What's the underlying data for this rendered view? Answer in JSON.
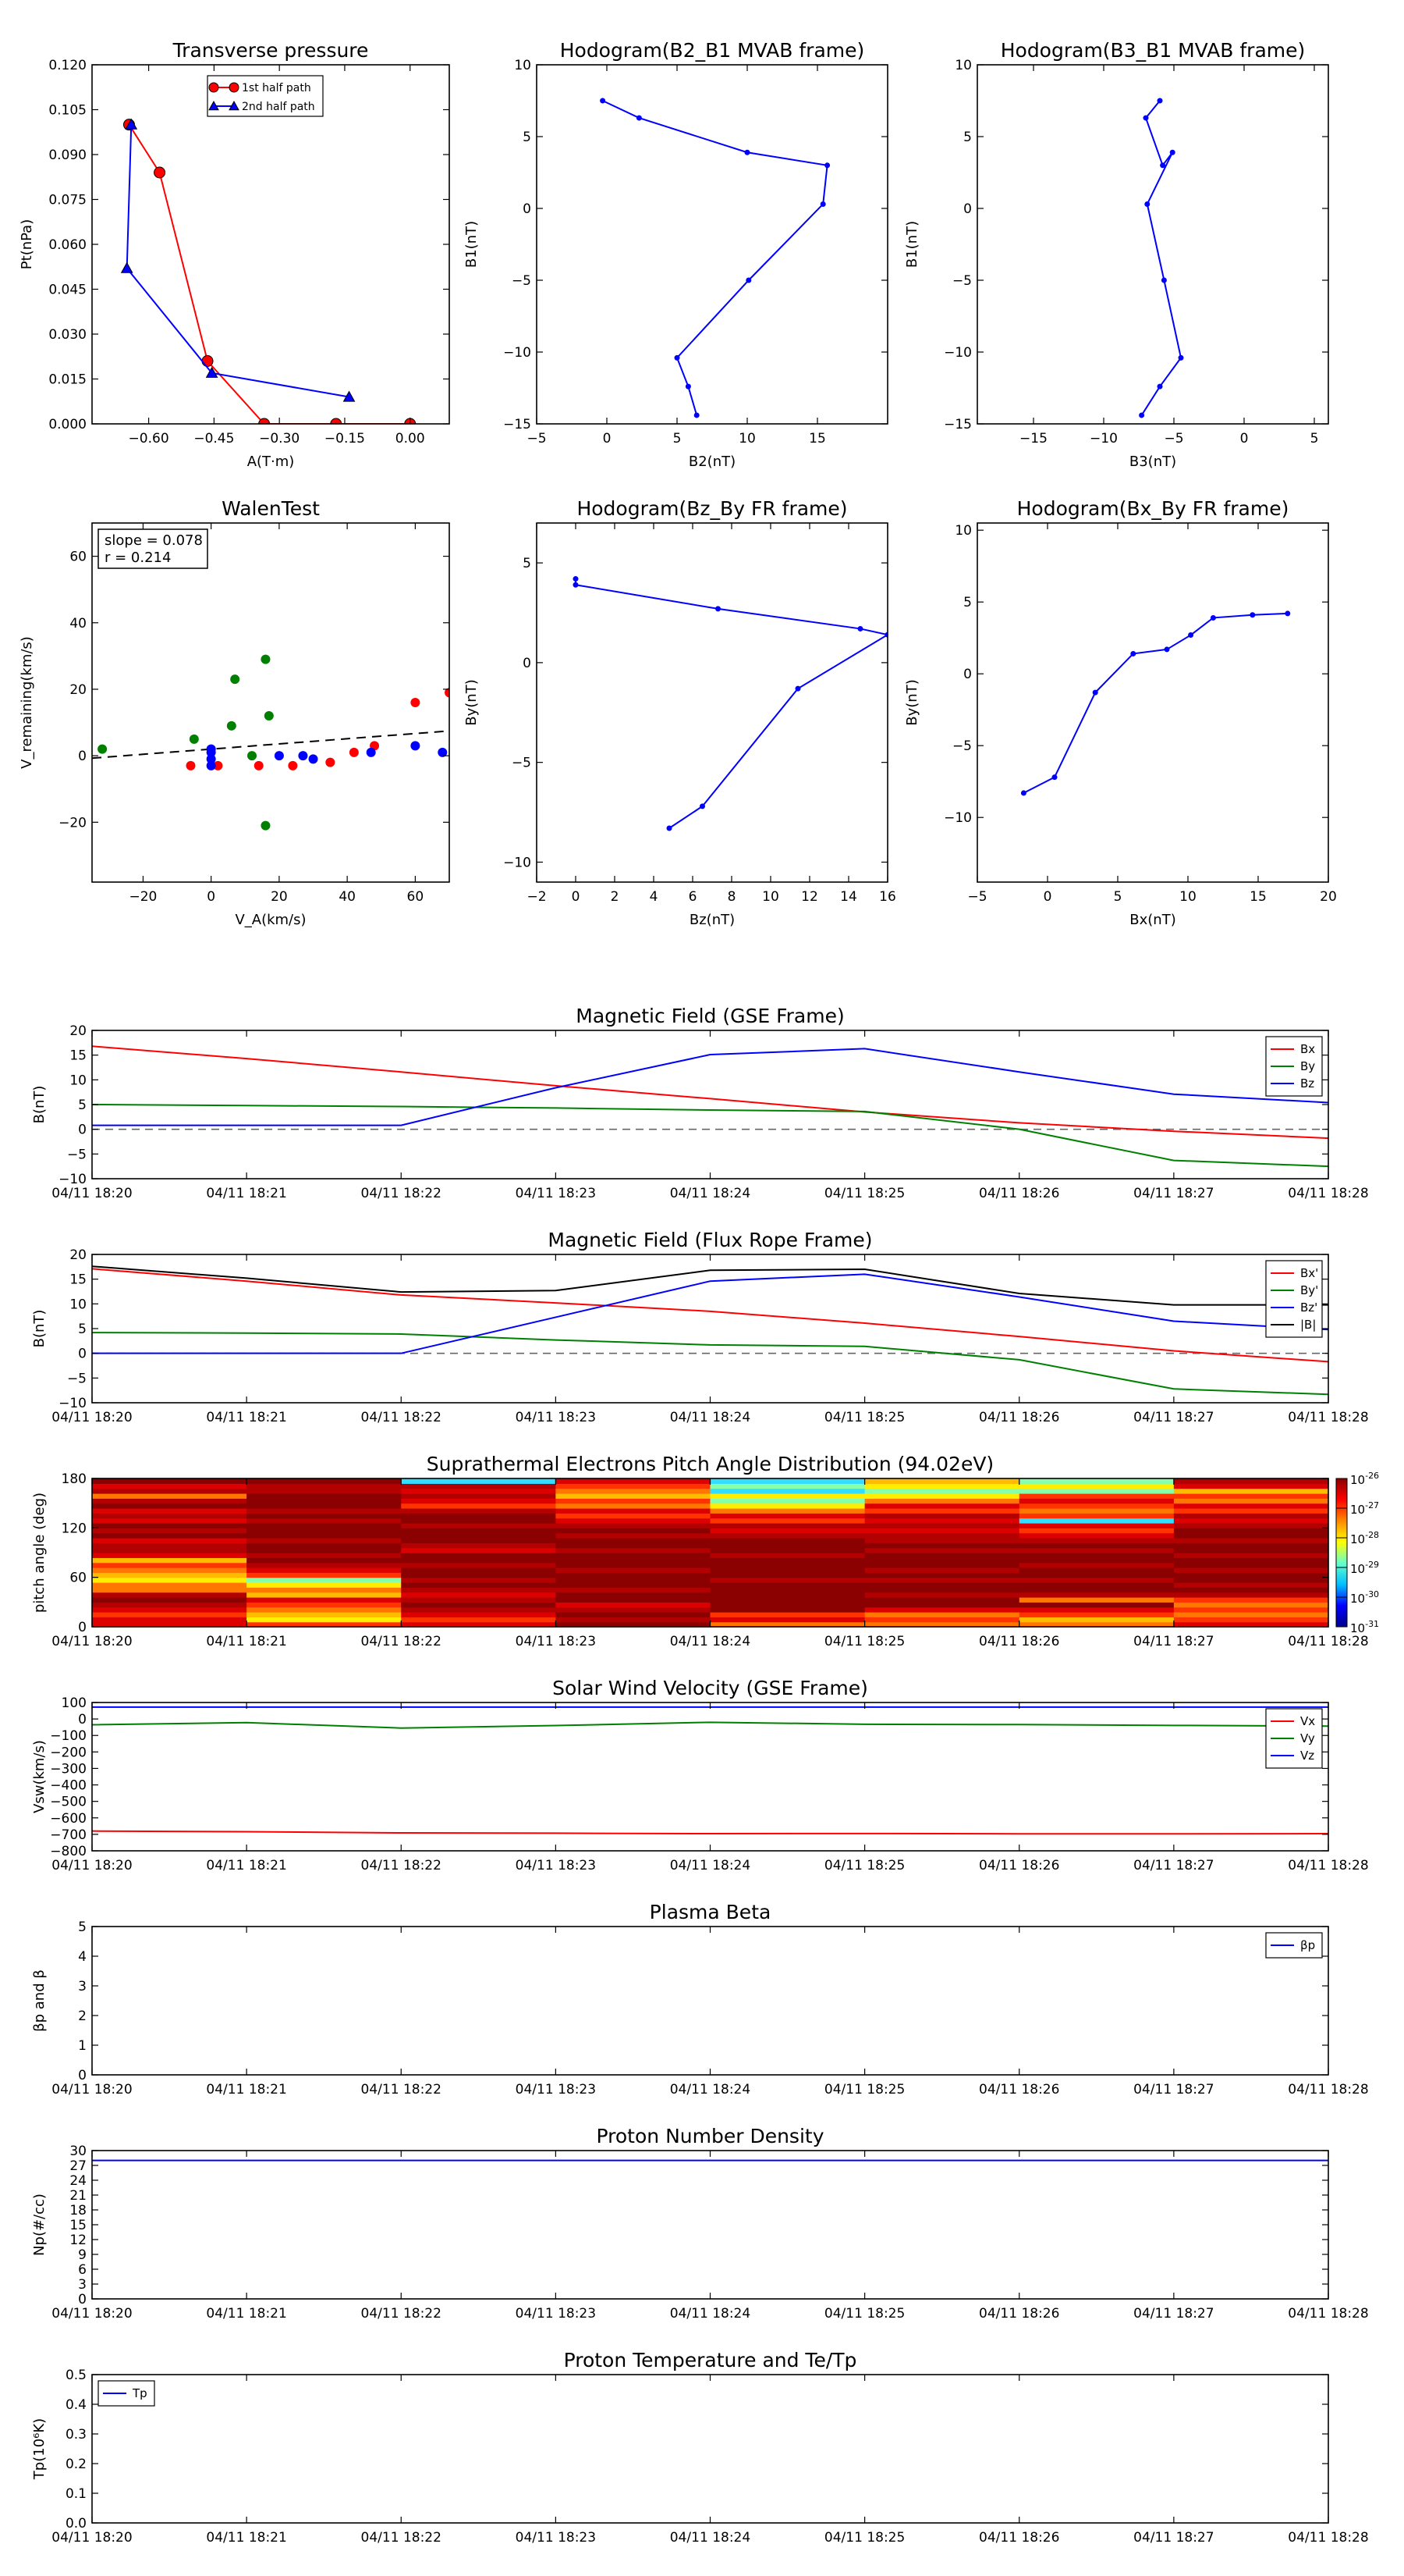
{
  "time_ticks": [
    "04/11 18:20",
    "04/11 18:21",
    "04/11 18:22",
    "04/11 18:23",
    "04/11 18:24",
    "04/11 18:25",
    "04/11 18:26",
    "04/11 18:27",
    "04/11 18:28"
  ],
  "chart_data": [
    {
      "id": "tp",
      "type": "line",
      "title": "Transverse pressure",
      "xlabel": "A(T·m)",
      "ylabel": "Pt(nPa)",
      "xlim": [
        -0.73,
        0.09
      ],
      "ylim": [
        0,
        0.12
      ],
      "xticks": [
        -0.6,
        -0.45,
        -0.3,
        -0.15,
        0.0
      ],
      "xtick_labels": [
        "−0.60",
        "−0.45",
        "−0.30",
        "−0.15",
        "0.00"
      ],
      "yticks": [
        0,
        0.015,
        0.03,
        0.045,
        0.06,
        0.075,
        0.09,
        0.105,
        0.12
      ],
      "ytick_labels": [
        "0.000",
        "0.015",
        "0.030",
        "0.045",
        "0.060",
        "0.075",
        "0.090",
        "0.105",
        "0.120"
      ],
      "legend": "top-center",
      "series": [
        {
          "name": "1st half path",
          "color": "#ff0000",
          "marker": "circle",
          "x": [
            -0.645,
            -0.575,
            -0.465,
            -0.335,
            -0.17,
            0.0
          ],
          "y": [
            0.1,
            0.084,
            0.021,
            0.0,
            0.0,
            0.0
          ]
        },
        {
          "name": "2nd half path",
          "color": "#0000ff",
          "marker": "triangle",
          "x": [
            -0.64,
            -0.65,
            -0.455,
            -0.14
          ],
          "y": [
            0.1,
            0.052,
            0.017,
            0.009
          ]
        }
      ]
    },
    {
      "id": "h1",
      "type": "line",
      "title": "Hodogram(B2_B1 MVAB frame)",
      "xlabel": "B2(nT)",
      "ylabel": "B1(nT)",
      "xlim": [
        -5,
        20
      ],
      "ylim": [
        -15,
        10
      ],
      "xticks": [
        -5,
        0,
        5,
        10,
        15
      ],
      "xtick_labels": [
        "−5",
        "0",
        "5",
        "10",
        "15"
      ],
      "yticks": [
        -15,
        -10,
        -5,
        0,
        5,
        10
      ],
      "ytick_labels": [
        "−15",
        "−10",
        "−5",
        "0",
        "5",
        "10"
      ],
      "series": [
        {
          "color": "#0000ff",
          "x": [
            -0.3,
            2.3,
            10,
            15.7,
            15.4,
            10.1,
            5,
            5.8,
            6.4
          ],
          "y": [
            7.5,
            6.3,
            3.9,
            3,
            0.3,
            -5,
            -10.4,
            -12.4,
            -14.4
          ]
        }
      ]
    },
    {
      "id": "h2",
      "type": "line",
      "title": "Hodogram(B3_B1 MVAB frame)",
      "xlabel": "B3(nT)",
      "ylabel": "B1(nT)",
      "xlim": [
        -19,
        6
      ],
      "ylim": [
        -15,
        10
      ],
      "xticks": [
        -15,
        -10,
        -5,
        0,
        5
      ],
      "xtick_labels": [
        "−15",
        "−10",
        "−5",
        "0",
        "5"
      ],
      "yticks": [
        -15,
        -10,
        -5,
        0,
        5,
        10
      ],
      "ytick_labels": [
        "−15",
        "−10",
        "−5",
        "0",
        "5",
        "10"
      ],
      "series": [
        {
          "color": "#0000ff",
          "x": [
            -6,
            -7,
            -5.8,
            -5.1,
            -6.9,
            -5.7,
            -4.5,
            -6,
            -7.3
          ],
          "y": [
            7.5,
            6.3,
            3,
            3.9,
            0.3,
            -5,
            -10.4,
            -12.4,
            -14.4
          ]
        }
      ]
    },
    {
      "id": "walen",
      "type": "scatter",
      "title": "WalenTest",
      "xlabel": "V_A(km/s)",
      "ylabel": "V_remaining(km/s)",
      "xlim": [
        -35,
        70
      ],
      "ylim": [
        -38,
        70
      ],
      "xticks": [
        -20,
        0,
        20,
        40,
        60
      ],
      "xtick_labels": [
        "−20",
        "0",
        "20",
        "40",
        "60"
      ],
      "yticks": [
        -20,
        0,
        20,
        40,
        60
      ],
      "ytick_labels": [
        "−20",
        "0",
        "20",
        "40",
        "60"
      ],
      "annotation": [
        "slope = 0.078",
        "r = 0.214"
      ],
      "fit_line": {
        "slope": 0.078,
        "intercept": 2
      },
      "series": [
        {
          "color": "#ff0000",
          "x": [
            -6,
            2,
            14,
            24,
            35,
            42,
            48,
            60,
            70
          ],
          "y": [
            -3,
            -3,
            -3,
            -3,
            -2,
            1,
            3,
            16,
            19
          ]
        },
        {
          "color": "#008000",
          "x": [
            -32,
            -5,
            6,
            7,
            12,
            16,
            17,
            16
          ],
          "y": [
            2,
            5,
            9,
            23,
            0,
            29,
            12,
            -21
          ]
        },
        {
          "color": "#0000ff",
          "x": [
            0,
            0,
            0,
            0,
            20,
            27,
            30,
            47,
            60,
            68
          ],
          "y": [
            -3,
            -1,
            1,
            2,
            0,
            0,
            -1,
            1,
            3,
            1
          ]
        }
      ]
    },
    {
      "id": "h3",
      "type": "line",
      "title": "Hodogram(Bz_By FR frame)",
      "xlabel": "Bz(nT)",
      "ylabel": "By(nT)",
      "xlim": [
        -2,
        16
      ],
      "ylim": [
        -11,
        7
      ],
      "xticks": [
        -2,
        0,
        2,
        4,
        6,
        8,
        10,
        12,
        14,
        16
      ],
      "xtick_labels": [
        "−2",
        "0",
        "2",
        "4",
        "6",
        "8",
        "10",
        "12",
        "14",
        "16"
      ],
      "yticks": [
        -10,
        -5,
        0,
        5
      ],
      "ytick_labels": [
        "−10",
        "−5",
        "0",
        "5"
      ],
      "series": [
        {
          "color": "#0000ff",
          "x": [
            0,
            0,
            7.3,
            14.6,
            16,
            11.4,
            6.5,
            4.8
          ],
          "y": [
            4.2,
            3.9,
            2.7,
            1.7,
            1.4,
            -1.3,
            -7.2,
            -8.3
          ]
        }
      ]
    },
    {
      "id": "h4",
      "type": "line",
      "title": "Hodogram(Bx_By FR frame)",
      "xlabel": "Bx(nT)",
      "ylabel": "By(nT)",
      "xlim": [
        -5,
        20
      ],
      "ylim": [
        -14.5,
        10.5
      ],
      "xticks": [
        -5,
        0,
        5,
        10,
        15,
        20
      ],
      "xtick_labels": [
        "−5",
        "0",
        "5",
        "10",
        "15",
        "20"
      ],
      "yticks": [
        -10,
        -5,
        0,
        5,
        10
      ],
      "ytick_labels": [
        "−10",
        "−5",
        "0",
        "5",
        "10"
      ],
      "series": [
        {
          "color": "#0000ff",
          "x": [
            -1.7,
            0.5,
            3.4,
            6.1,
            8.5,
            10.2,
            11.8,
            14.6,
            17.1
          ],
          "y": [
            -8.3,
            -7.2,
            -1.3,
            1.4,
            1.7,
            2.7,
            3.9,
            4.1,
            4.2
          ]
        }
      ]
    },
    {
      "id": "bgse",
      "type": "line",
      "title": "Magnetic Field (GSE Frame)",
      "ylabel": "B(nT)",
      "ylim": [
        -10,
        20
      ],
      "yticks": [
        -10,
        -5,
        0,
        5,
        10,
        15,
        20
      ],
      "ytick_labels": [
        "−10",
        "−5",
        "0",
        "5",
        "10",
        "15",
        "20"
      ],
      "zero_line": true,
      "legend": "top-right",
      "x": [
        0,
        1,
        2,
        3,
        4,
        5,
        6,
        7,
        8
      ],
      "series": [
        {
          "name": "Bx",
          "color": "#ff0000",
          "values": [
            16.8,
            14.3,
            11.6,
            8.8,
            6.2,
            3.5,
            1.3,
            -0.4,
            -1.8
          ]
        },
        {
          "name": "By",
          "color": "#008000",
          "values": [
            5,
            4.8,
            4.6,
            4.3,
            3.9,
            3.6,
            0,
            -6.3,
            -7.5
          ]
        },
        {
          "name": "Bz",
          "color": "#0000ff",
          "values": [
            0.8,
            0.8,
            0.8,
            8.4,
            15.1,
            16.3,
            11.6,
            7.1,
            5.4
          ]
        }
      ]
    },
    {
      "id": "bfr",
      "type": "line",
      "title": "Magnetic Field (Flux Rope Frame)",
      "ylabel": "B(nT)",
      "ylim": [
        -10,
        20
      ],
      "yticks": [
        -10,
        -5,
        0,
        5,
        10,
        15,
        20
      ],
      "ytick_labels": [
        "−10",
        "−5",
        "0",
        "5",
        "10",
        "15",
        "20"
      ],
      "zero_line": true,
      "legend": "top-right",
      "x": [
        0,
        1,
        2,
        3,
        4,
        5,
        6,
        7,
        8
      ],
      "series": [
        {
          "name": "Bx'",
          "color": "#ff0000",
          "values": [
            17.1,
            14.6,
            11.8,
            10.2,
            8.5,
            6.1,
            3.4,
            0.5,
            -1.7
          ]
        },
        {
          "name": "By'",
          "color": "#008000",
          "values": [
            4.2,
            4.1,
            3.9,
            2.7,
            1.7,
            1.4,
            -1.3,
            -7.2,
            -8.3
          ]
        },
        {
          "name": "Bz'",
          "color": "#0000ff",
          "values": [
            0,
            0,
            0,
            7.3,
            14.6,
            16,
            11.4,
            6.5,
            4.8
          ]
        },
        {
          "name": "|B|",
          "color": "#000000",
          "values": [
            17.6,
            15.2,
            12.4,
            12.7,
            16.8,
            17,
            12.1,
            9.8,
            9.8
          ]
        }
      ]
    },
    {
      "id": "pad",
      "type": "heatmap",
      "title": "Suprathermal Electrons Pitch Angle Distribution (94.02eV)",
      "ylabel": "pitch angle (deg)",
      "ylim": [
        0,
        180
      ],
      "yticks": [
        0,
        60,
        120,
        180
      ],
      "ytick_labels": [
        "0",
        "60",
        "120",
        "180"
      ],
      "colorbar_ticks": [
        "10-26",
        "10-27",
        "10-28",
        "10-29",
        "10-30",
        "10-31"
      ],
      "rows": 30,
      "columns": [
        {
          "b": [
            3,
            3,
            4,
            3,
            2,
            1,
            2,
            5,
            5,
            7,
            6,
            5,
            4,
            6,
            3,
            2,
            2,
            3,
            1,
            2,
            1,
            3,
            2,
            3,
            1,
            2,
            5,
            2,
            3,
            1
          ]
        },
        {
          "b": [
            4,
            7,
            6,
            5,
            4,
            3,
            6,
            5,
            7,
            8,
            4,
            3,
            2,
            1,
            2,
            1,
            1,
            2,
            1,
            1,
            1,
            2,
            1,
            2,
            1,
            1,
            1,
            2,
            2,
            1
          ]
        },
        {
          "b": [
            3,
            4,
            3,
            2,
            1,
            2,
            3,
            2,
            1,
            2,
            1,
            1,
            2,
            1,
            1,
            3,
            2,
            1,
            1,
            1,
            2,
            1,
            1,
            2,
            4,
            3,
            2,
            3,
            2,
            9
          ]
        },
        {
          "b": [
            1,
            2,
            1,
            2,
            3,
            1,
            1,
            2,
            1,
            1,
            1,
            2,
            1,
            1,
            1,
            2,
            1,
            1,
            2,
            1,
            2,
            3,
            4,
            3,
            5,
            4,
            6,
            5,
            4,
            3
          ]
        },
        {
          "b": [
            5,
            3,
            4,
            1,
            1,
            1,
            1,
            1,
            1,
            2,
            1,
            1,
            1,
            1,
            2,
            1,
            1,
            1,
            2,
            3,
            2,
            4,
            3,
            5,
            7,
            8,
            7,
            9,
            8,
            9
          ]
        },
        {
          "b": [
            5,
            4,
            5,
            3,
            1,
            1,
            2,
            1,
            1,
            2,
            1,
            2,
            1,
            1,
            1,
            2,
            1,
            2,
            2,
            3,
            2,
            3,
            2,
            4,
            3,
            5,
            7,
            8,
            7,
            6
          ]
        },
        {
          "b": [
            5,
            6,
            4,
            3,
            1,
            5,
            2,
            1,
            1,
            2,
            1,
            1,
            2,
            1,
            1,
            2,
            1,
            2,
            3,
            4,
            3,
            9,
            4,
            5,
            4,
            3,
            4,
            8,
            7,
            8
          ]
        },
        {
          "b": [
            3,
            4,
            5,
            4,
            5,
            4,
            2,
            1,
            2,
            1,
            1,
            2,
            1,
            1,
            2,
            1,
            1,
            2,
            1,
            1,
            2,
            3,
            2,
            4,
            3,
            5,
            4,
            6,
            3,
            2
          ]
        }
      ]
    },
    {
      "id": "vsw",
      "type": "line",
      "title": "Solar Wind Velocity (GSE Frame)",
      "ylabel": "Vsw(km/s)",
      "ylim": [
        -800,
        100
      ],
      "yticks": [
        -800,
        -700,
        -600,
        -500,
        -400,
        -300,
        -200,
        -100,
        0,
        100
      ],
      "ytick_labels": [
        "−800",
        "−700",
        "−600",
        "−500",
        "−400",
        "−300",
        "−200",
        "−100",
        "0",
        "100"
      ],
      "legend": "top-right",
      "x": [
        0,
        1,
        2,
        3,
        4,
        5,
        6,
        7,
        8
      ],
      "series": [
        {
          "name": "Vx",
          "color": "#ff0000",
          "values": [
            -680,
            -684,
            -691,
            -693,
            -696,
            -695,
            -697,
            -697,
            -696
          ]
        },
        {
          "name": "Vy",
          "color": "#008000",
          "values": [
            -35,
            -22,
            -55,
            -40,
            -20,
            -32,
            -34,
            -39,
            -43
          ]
        },
        {
          "name": "Vz",
          "color": "#0000ff",
          "values": [
            72,
            72,
            72,
            72,
            72,
            72,
            72,
            72,
            72
          ]
        }
      ]
    },
    {
      "id": "beta",
      "type": "line",
      "title": "Plasma Beta",
      "ylabel": "βp and β",
      "ylim": [
        0,
        5
      ],
      "yticks": [
        0,
        1,
        2,
        3,
        4,
        5
      ],
      "ytick_labels": [
        "0",
        "1",
        "2",
        "3",
        "4",
        "5"
      ],
      "legend": "top-right",
      "x": [],
      "series": [
        {
          "name": "βp",
          "color": "#0000ff",
          "values": []
        }
      ]
    },
    {
      "id": "np",
      "type": "line",
      "title": "Proton Number Density",
      "ylabel": "Np(#/cc)",
      "ylim": [
        0,
        30
      ],
      "yticks": [
        0,
        3,
        6,
        9,
        12,
        15,
        18,
        21,
        24,
        27,
        30
      ],
      "ytick_labels": [
        "0",
        "3",
        "6",
        "9",
        "12",
        "15",
        "18",
        "21",
        "24",
        "27",
        "30"
      ],
      "x": [
        0,
        8
      ],
      "series": [
        {
          "color": "#0000ff",
          "values": [
            28,
            28
          ]
        }
      ]
    },
    {
      "id": "tp2",
      "type": "line",
      "title": "Proton Temperature and Te/Tp",
      "ylabel": "Tp(10⁶K)",
      "ylim": [
        0,
        0.5
      ],
      "yticks": [
        0,
        0.1,
        0.2,
        0.3,
        0.4,
        0.5
      ],
      "ytick_labels": [
        "0.0",
        "0.1",
        "0.2",
        "0.3",
        "0.4",
        "0.5"
      ],
      "legend": "top-left",
      "x": [],
      "series": [
        {
          "name": "Tp",
          "color": "#0000ff",
          "values": []
        }
      ]
    }
  ]
}
